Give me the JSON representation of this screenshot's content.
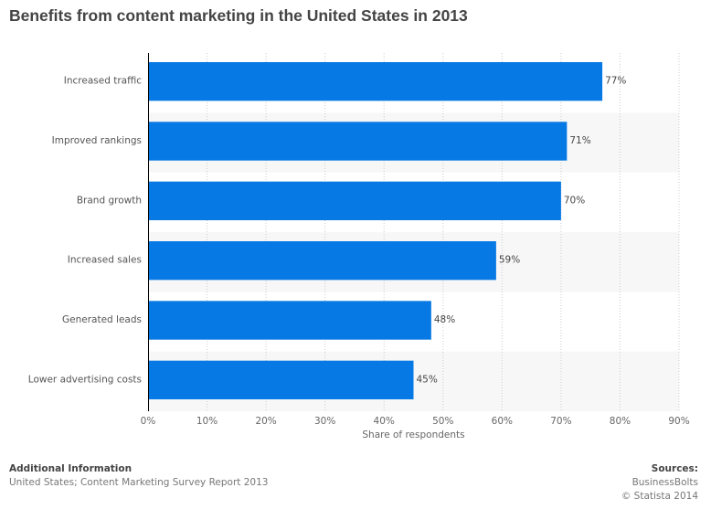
{
  "title": "Benefits from content marketing in the United States in 2013",
  "chart_data": {
    "type": "bar",
    "orientation": "horizontal",
    "categories": [
      "Increased traffic",
      "Improved rankings",
      "Brand growth",
      "Increased sales",
      "Generated leads",
      "Lower advertising costs"
    ],
    "values": [
      77,
      71,
      70,
      59,
      48,
      45
    ],
    "value_labels": [
      "77%",
      "71%",
      "70%",
      "59%",
      "48%",
      "45%"
    ],
    "xlabel": "Share of respondents",
    "xlim": [
      0,
      90
    ],
    "ticks": [
      "0%",
      "10%",
      "20%",
      "30%",
      "40%",
      "50%",
      "60%",
      "70%",
      "80%",
      "90%"
    ],
    "grid": true,
    "bar_color": "#0779e4"
  },
  "footer": {
    "info_heading": "Additional Information",
    "info_text": "United States; Content Marketing Survey Report 2013",
    "sources_heading": "Sources:",
    "source": "BusinessBolts",
    "copyright": "© Statista 2014"
  }
}
